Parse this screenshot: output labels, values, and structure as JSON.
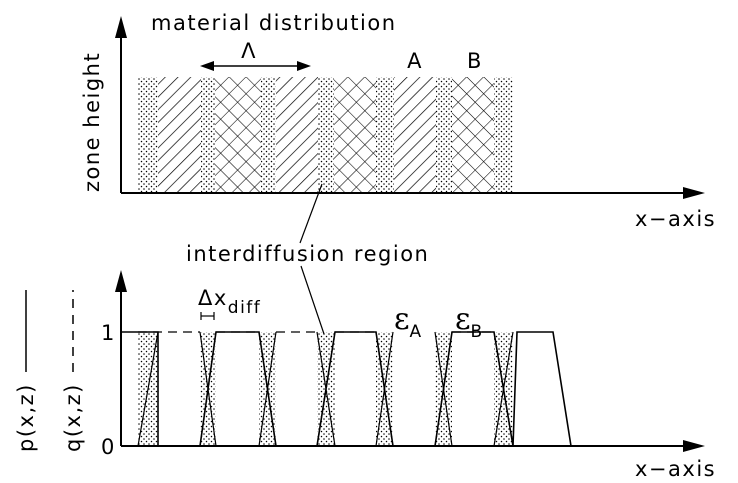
{
  "top_panel": {
    "title": "material distribution",
    "y_label": "zone height",
    "x_label": "x−axis",
    "period_symbol": "Λ",
    "label_a": "A",
    "label_b": "B"
  },
  "callout": {
    "text": "interdiffusion region"
  },
  "bottom_panel": {
    "y_label_p": "p(x,z)",
    "y_label_q": "q(x,z)",
    "x_label": "x−axis",
    "tick_one": "1",
    "tick_zero": "0",
    "delta_label": "Δx",
    "delta_sub": "diff",
    "eps_a": "ε",
    "eps_a_sub": "A",
    "eps_b": "ε",
    "eps_b_sub": "B"
  }
}
